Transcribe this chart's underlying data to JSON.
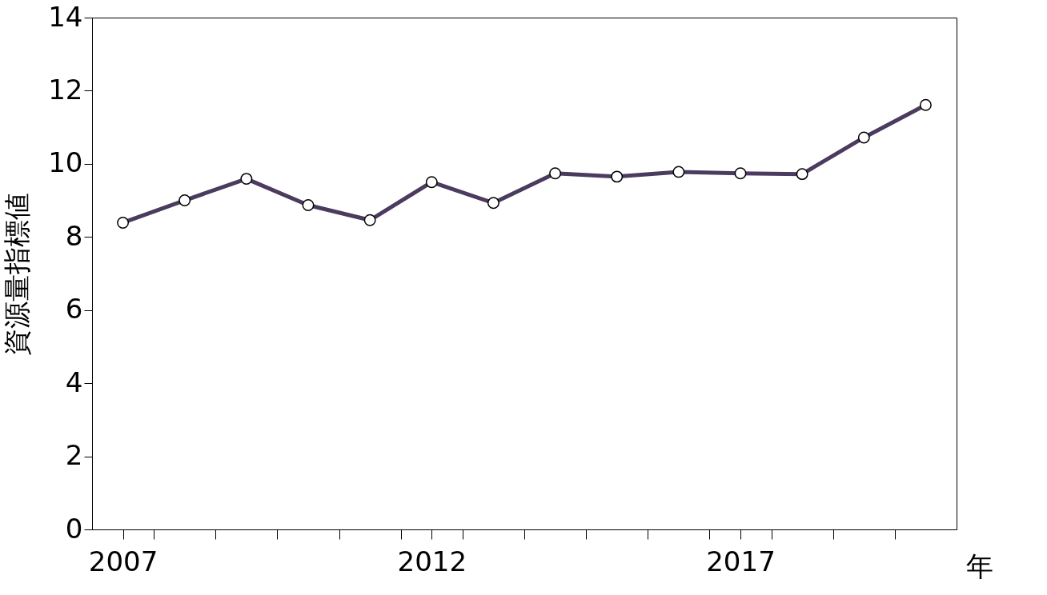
{
  "chart_data": {
    "type": "line",
    "xlabel": "年",
    "ylabel": "資源量指標値",
    "x": [
      2007,
      2008,
      2009,
      2010,
      2011,
      2012,
      2013,
      2014,
      2015,
      2016,
      2017,
      2018,
      2019,
      2020
    ],
    "series": [
      {
        "color": "#4b3b5e",
        "values": [
          8.39,
          9.0,
          9.59,
          8.87,
          8.46,
          9.5,
          8.93,
          9.74,
          9.65,
          9.78,
          9.74,
          9.72,
          10.72,
          11.61
        ]
      }
    ],
    "xlim": [
      2006.5,
      2020.5
    ],
    "xticks": [
      2007,
      {
        "value": 2007.5,
        "label": null
      },
      {
        "value": 2008.5,
        "label": null
      },
      {
        "value": 2009.5,
        "label": null
      },
      {
        "value": 2010.5,
        "label": null
      },
      {
        "value": 2011.5,
        "label": null
      },
      2012,
      {
        "value": 2012.5,
        "label": null
      },
      {
        "value": 2013.5,
        "label": null
      },
      {
        "value": 2014.5,
        "label": null
      },
      {
        "value": 2015.5,
        "label": null
      },
      {
        "value": 2016.5,
        "label": null
      },
      2017,
      {
        "value": 2017.5,
        "label": null
      },
      {
        "value": 2018.5,
        "label": null
      },
      {
        "value": 2019.5,
        "label": null
      }
    ],
    "ylim": [
      0,
      14
    ],
    "yticks": [
      0,
      2,
      4,
      6,
      8,
      10,
      12,
      14
    ],
    "grid": false,
    "marker": "circle",
    "line_style": "solid"
  }
}
